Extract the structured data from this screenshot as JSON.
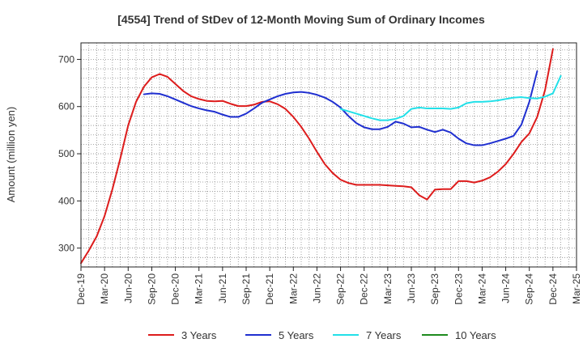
{
  "chart_data": {
    "type": "line",
    "title": "[4554]  Trend of StDev of 12-Month Moving Sum of Ordinary Incomes",
    "xlabel": "",
    "ylabel": "Amount (million yen)",
    "ylim": [
      260,
      735
    ],
    "yticks": [
      300,
      400,
      500,
      600,
      700
    ],
    "x_tick_labels": [
      "Dec-19",
      "Mar-20",
      "Jun-20",
      "Sep-20",
      "Dec-20",
      "Mar-21",
      "Jun-21",
      "Sep-21",
      "Dec-21",
      "Mar-22",
      "Jun-22",
      "Sep-22",
      "Dec-22",
      "Mar-23",
      "Jun-23",
      "Sep-23",
      "Dec-23",
      "Mar-24",
      "Jun-24",
      "Sep-24",
      "Dec-24",
      "Mar-25"
    ],
    "grid": true,
    "legend_position": "bottom",
    "series": [
      {
        "name": "3 Years",
        "color": "#dd1c1c",
        "values": [
          [
            0,
            268
          ],
          [
            1,
            295
          ],
          [
            2,
            325
          ],
          [
            3,
            368
          ],
          [
            4,
            425
          ],
          [
            5,
            490
          ],
          [
            6,
            560
          ],
          [
            7,
            610
          ],
          [
            8,
            642
          ],
          [
            9,
            662
          ],
          [
            10,
            669
          ],
          [
            11,
            663
          ],
          [
            12,
            648
          ],
          [
            13,
            633
          ],
          [
            14,
            622
          ],
          [
            15,
            616
          ],
          [
            16,
            612
          ],
          [
            17,
            611
          ],
          [
            18,
            612
          ],
          [
            19,
            606
          ],
          [
            20,
            601
          ],
          [
            21,
            601
          ],
          [
            22,
            604
          ],
          [
            23,
            610
          ],
          [
            24,
            611
          ],
          [
            25,
            605
          ],
          [
            26,
            595
          ],
          [
            27,
            578
          ],
          [
            28,
            557
          ],
          [
            29,
            532
          ],
          [
            30,
            504
          ],
          [
            31,
            478
          ],
          [
            32,
            459
          ],
          [
            33,
            445
          ],
          [
            34,
            438
          ],
          [
            35,
            434
          ],
          [
            36,
            434
          ],
          [
            37,
            434
          ],
          [
            38,
            434
          ],
          [
            39,
            433
          ],
          [
            40,
            432
          ],
          [
            41,
            431
          ],
          [
            42,
            429
          ],
          [
            43,
            412
          ],
          [
            44,
            403
          ],
          [
            45,
            424
          ],
          [
            46,
            425
          ],
          [
            47,
            425
          ],
          [
            48,
            442
          ],
          [
            49,
            442
          ],
          [
            50,
            439
          ],
          [
            51,
            443
          ],
          [
            52,
            450
          ],
          [
            53,
            462
          ],
          [
            54,
            478
          ],
          [
            55,
            500
          ],
          [
            56,
            525
          ],
          [
            57,
            543
          ],
          [
            58,
            578
          ],
          [
            59,
            635
          ],
          [
            60,
            722
          ]
        ]
      },
      {
        "name": "5 Years",
        "color": "#1f2fd0",
        "values": [
          [
            8,
            626
          ],
          [
            9,
            628
          ],
          [
            10,
            627
          ],
          [
            11,
            622
          ],
          [
            12,
            615
          ],
          [
            13,
            608
          ],
          [
            14,
            601
          ],
          [
            15,
            596
          ],
          [
            16,
            592
          ],
          [
            17,
            589
          ],
          [
            18,
            583
          ],
          [
            19,
            578
          ],
          [
            20,
            578
          ],
          [
            21,
            585
          ],
          [
            22,
            596
          ],
          [
            23,
            608
          ],
          [
            24,
            615
          ],
          [
            25,
            622
          ],
          [
            26,
            627
          ],
          [
            27,
            630
          ],
          [
            28,
            631
          ],
          [
            29,
            629
          ],
          [
            30,
            625
          ],
          [
            31,
            619
          ],
          [
            32,
            610
          ],
          [
            33,
            598
          ],
          [
            34,
            580
          ],
          [
            35,
            565
          ],
          [
            36,
            556
          ],
          [
            37,
            552
          ],
          [
            38,
            552
          ],
          [
            39,
            557
          ],
          [
            40,
            568
          ],
          [
            41,
            564
          ],
          [
            42,
            556
          ],
          [
            43,
            557
          ],
          [
            44,
            551
          ],
          [
            45,
            546
          ],
          [
            46,
            551
          ],
          [
            47,
            545
          ],
          [
            48,
            532
          ],
          [
            49,
            522
          ],
          [
            50,
            518
          ],
          [
            51,
            518
          ],
          [
            52,
            522
          ],
          [
            53,
            527
          ],
          [
            54,
            532
          ],
          [
            55,
            538
          ],
          [
            56,
            562
          ],
          [
            57,
            610
          ],
          [
            58,
            675
          ]
        ]
      },
      {
        "name": "7 Years",
        "color": "#22e0e8",
        "values": [
          [
            33,
            595
          ],
          [
            34,
            590
          ],
          [
            35,
            585
          ],
          [
            36,
            580
          ],
          [
            37,
            575
          ],
          [
            38,
            571
          ],
          [
            39,
            571
          ],
          [
            40,
            574
          ],
          [
            41,
            580
          ],
          [
            42,
            595
          ],
          [
            43,
            598
          ],
          [
            44,
            596
          ],
          [
            45,
            596
          ],
          [
            46,
            596
          ],
          [
            47,
            595
          ],
          [
            48,
            598
          ],
          [
            49,
            607
          ],
          [
            50,
            610
          ],
          [
            51,
            610
          ],
          [
            52,
            611
          ],
          [
            53,
            613
          ],
          [
            54,
            616
          ],
          [
            55,
            619
          ],
          [
            56,
            620
          ],
          [
            57,
            618
          ],
          [
            58,
            617
          ],
          [
            59,
            621
          ],
          [
            60,
            628
          ],
          [
            61,
            665
          ]
        ]
      },
      {
        "name": "10 Years",
        "color": "#1e8b1e",
        "values": []
      }
    ]
  }
}
